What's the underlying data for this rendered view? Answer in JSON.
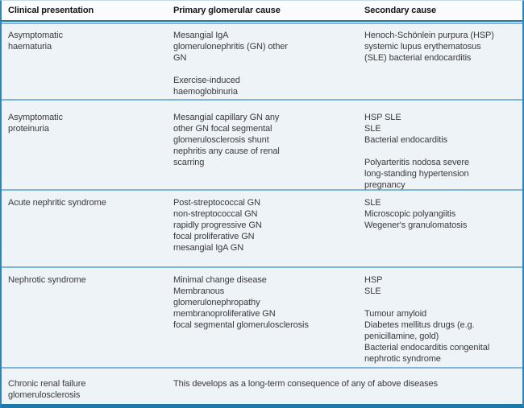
{
  "theme": {
    "accent_dark": "#1e79ab",
    "accent_light": "#7fb6dc",
    "side_border": "#2e86b8",
    "body_bg": "#eef3f8",
    "header_bg": "#f9fbfc"
  },
  "table": {
    "headers": [
      "Clinical presentation",
      "Primary glomerular cause",
      "Secondary cause"
    ],
    "rows": [
      {
        "presentation": "Asymptomatic\nhaematuria",
        "primary": "Mesangial IgA\nglomerulonephritis (GN) other\nGN\n\nExercise-induced\nhaemoglobinuria",
        "secondary": "Henoch-Schönlein purpura (HSP)\nsystemic lupus erythematosus\n(SLE) bacterial endocarditis"
      },
      {
        "presentation": "Asymptomatic\nproteinuria",
        "primary": "Mesangial capillary GN any\nother GN focal segmental\nglomerulosclerosis shunt\nnephritis any cause of renal\nscarring",
        "secondary": "HSP SLE\nSLE\nBacterial endocarditis\n\nPolyarteritis nodosa severe\nlong-standing hypertension\npregnancy"
      },
      {
        "presentation": "Acute nephritic syndrome",
        "primary": "Post-streptococcal GN\nnon-streptococcal GN\nrapidly progressive GN\nfocal proliferative GN\nmesangial IgA GN",
        "secondary": "SLE\nMicroscopic polyangiitis\nWegener's granulomatosis"
      },
      {
        "presentation": "Nephrotic syndrome",
        "primary": "Minimal change disease\nMembranous\nglomerulonephropathy\nmembranoproliferative GN\nfocal segmental glomerulosclerosis",
        "secondary": "HSP\nSLE\n\nTumour amyloid\nDiabetes mellitus drugs (e.g.\npenicillamine, gold)\nBacterial endocarditis congenital\nnephrotic syndrome"
      },
      {
        "presentation": "Chronic renal failure\nglomerulosclerosis",
        "span_text": "This develops as a long-term consequence of any of above diseases"
      }
    ]
  }
}
